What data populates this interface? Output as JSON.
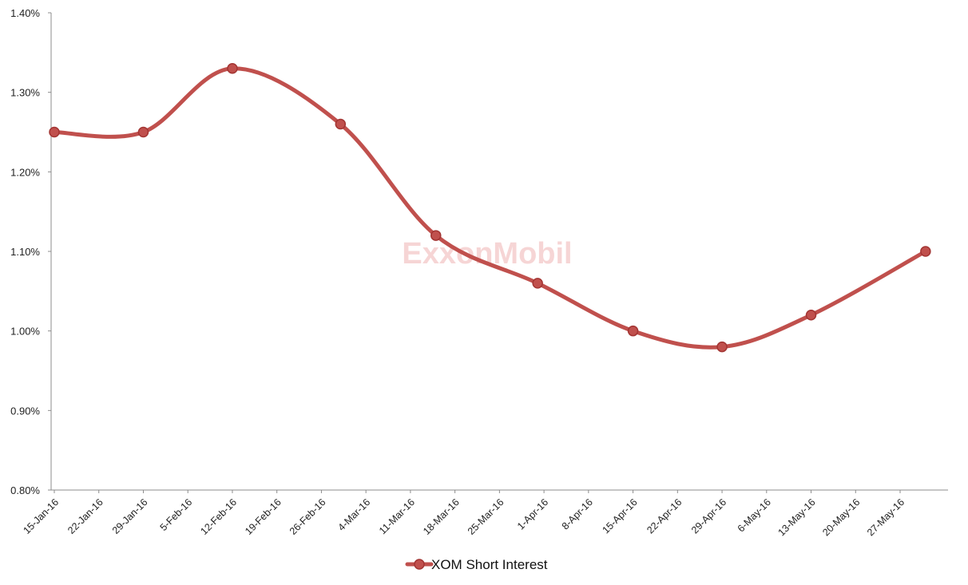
{
  "watermark": "ExxonMobil",
  "colors": {
    "series": "#c0504d",
    "series_dark": "#a33533",
    "axis": "#8c8c8c"
  },
  "chart_data": {
    "type": "line",
    "title": "",
    "xlabel": "",
    "ylabel": "",
    "ylim": [
      0.008,
      0.014
    ],
    "y_tick_labels": [
      "0.80%",
      "0.90%",
      "1.00%",
      "1.10%",
      "1.20%",
      "1.30%",
      "1.40%"
    ],
    "x_tick_labels": [
      "15-Jan-16",
      "22-Jan-16",
      "29-Jan-16",
      "5-Feb-16",
      "12-Feb-16",
      "19-Feb-16",
      "26-Feb-16",
      "4-Mar-16",
      "11-Mar-16",
      "18-Mar-16",
      "25-Mar-16",
      "1-Apr-16",
      "8-Apr-16",
      "15-Apr-16",
      "22-Apr-16",
      "29-Apr-16",
      "6-May-16",
      "13-May-16",
      "20-May-16",
      "27-May-16"
    ],
    "grid": false,
    "legend": "bottom",
    "smooth": true,
    "series": [
      {
        "name": "XOM Short Interest",
        "points": [
          {
            "x": "2016-01-15",
            "y": 0.0125
          },
          {
            "x": "2016-01-29",
            "y": 0.0125
          },
          {
            "x": "2016-02-12",
            "y": 0.0133
          },
          {
            "x": "2016-02-29",
            "y": 0.0126
          },
          {
            "x": "2016-03-15",
            "y": 0.0112
          },
          {
            "x": "2016-03-31",
            "y": 0.0106
          },
          {
            "x": "2016-04-15",
            "y": 0.01
          },
          {
            "x": "2016-04-29",
            "y": 0.0098
          },
          {
            "x": "2016-05-13",
            "y": 0.0102
          },
          {
            "x": "2016-05-31",
            "y": 0.011
          }
        ]
      }
    ]
  }
}
